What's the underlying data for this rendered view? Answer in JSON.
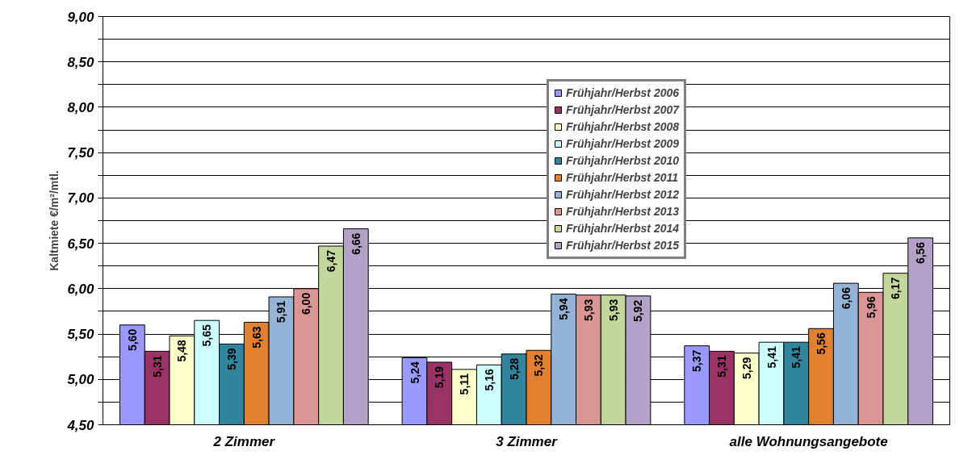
{
  "chart_data": {
    "type": "bar",
    "ylabel": "Kaltmiete €/m²/mtl.",
    "categories": [
      "2 Zimmer",
      "3 Zimmer",
      "alle Wohnungsangebote"
    ],
    "series": [
      {
        "name": "Frühjahr/Herbst 2006",
        "color": "#9999ff",
        "values": [
          5.6,
          5.24,
          5.37
        ],
        "value_labels": [
          "5,60",
          "5,24",
          "5,37"
        ]
      },
      {
        "name": "Frühjahr/Herbst 2007",
        "color": "#993366",
        "values": [
          5.31,
          5.19,
          5.31
        ],
        "value_labels": [
          "5,31",
          "5,19",
          "5,31"
        ]
      },
      {
        "name": "Frühjahr/Herbst 2008",
        "color": "#ffffcc",
        "values": [
          5.48,
          5.11,
          5.29
        ],
        "value_labels": [
          "5,48",
          "5,11",
          "5,29"
        ]
      },
      {
        "name": "Frühjahr/Herbst 2009",
        "color": "#ccffff",
        "values": [
          5.65,
          5.16,
          5.41
        ],
        "value_labels": [
          "5,65",
          "5,16",
          "5,41"
        ]
      },
      {
        "name": "Frühjahr/Herbst 2010",
        "color": "#31859c",
        "values": [
          5.39,
          5.28,
          5.41
        ],
        "value_labels": [
          "5,39",
          "5,28",
          "5,41"
        ]
      },
      {
        "name": "Frühjahr/Herbst 2011",
        "color": "#e08030",
        "values": [
          5.63,
          5.32,
          5.56
        ],
        "value_labels": [
          "5,63",
          "5,32",
          "5,56"
        ]
      },
      {
        "name": "Frühjahr/Herbst 2012",
        "color": "#95b3d7",
        "values": [
          5.91,
          5.94,
          6.06
        ],
        "value_labels": [
          "5,91",
          "5,94",
          "6,06"
        ]
      },
      {
        "name": "Frühjahr/Herbst 2013",
        "color": "#d99694",
        "values": [
          6.0,
          5.93,
          5.96
        ],
        "value_labels": [
          "6,00",
          "5,93",
          "5,96"
        ]
      },
      {
        "name": "Frühjahr/Herbst 2014",
        "color": "#c3d69b",
        "values": [
          6.47,
          5.93,
          6.17
        ],
        "value_labels": [
          "6,47",
          "5,93",
          "6,17"
        ]
      },
      {
        "name": "Frühjahr/Herbst 2015",
        "color": "#b3a2c7",
        "values": [
          6.66,
          5.92,
          6.56
        ],
        "value_labels": [
          "6,66",
          "5,92",
          "6,56"
        ]
      }
    ],
    "ylim": [
      4.5,
      9.0
    ],
    "yticks": [
      {
        "value": 4.5,
        "label": "4,50"
      },
      {
        "value": 4.75,
        "label": null
      },
      {
        "value": 5.0,
        "label": "5,00"
      },
      {
        "value": 5.25,
        "label": null
      },
      {
        "value": 5.5,
        "label": "5,50"
      },
      {
        "value": 5.75,
        "label": null
      },
      {
        "value": 6.0,
        "label": "6,00"
      },
      {
        "value": 6.25,
        "label": null
      },
      {
        "value": 6.5,
        "label": "6,50"
      },
      {
        "value": 6.75,
        "label": null
      },
      {
        "value": 7.0,
        "label": "7,00"
      },
      {
        "value": 7.25,
        "label": null
      },
      {
        "value": 7.5,
        "label": "7,50"
      },
      {
        "value": 7.75,
        "label": null
      },
      {
        "value": 8.0,
        "label": "8,00"
      },
      {
        "value": 8.25,
        "label": null
      },
      {
        "value": 8.5,
        "label": "8,50"
      },
      {
        "value": 8.75,
        "label": null
      },
      {
        "value": 9.0,
        "label": "9,00"
      }
    ],
    "grid": "y",
    "legend": "top"
  }
}
